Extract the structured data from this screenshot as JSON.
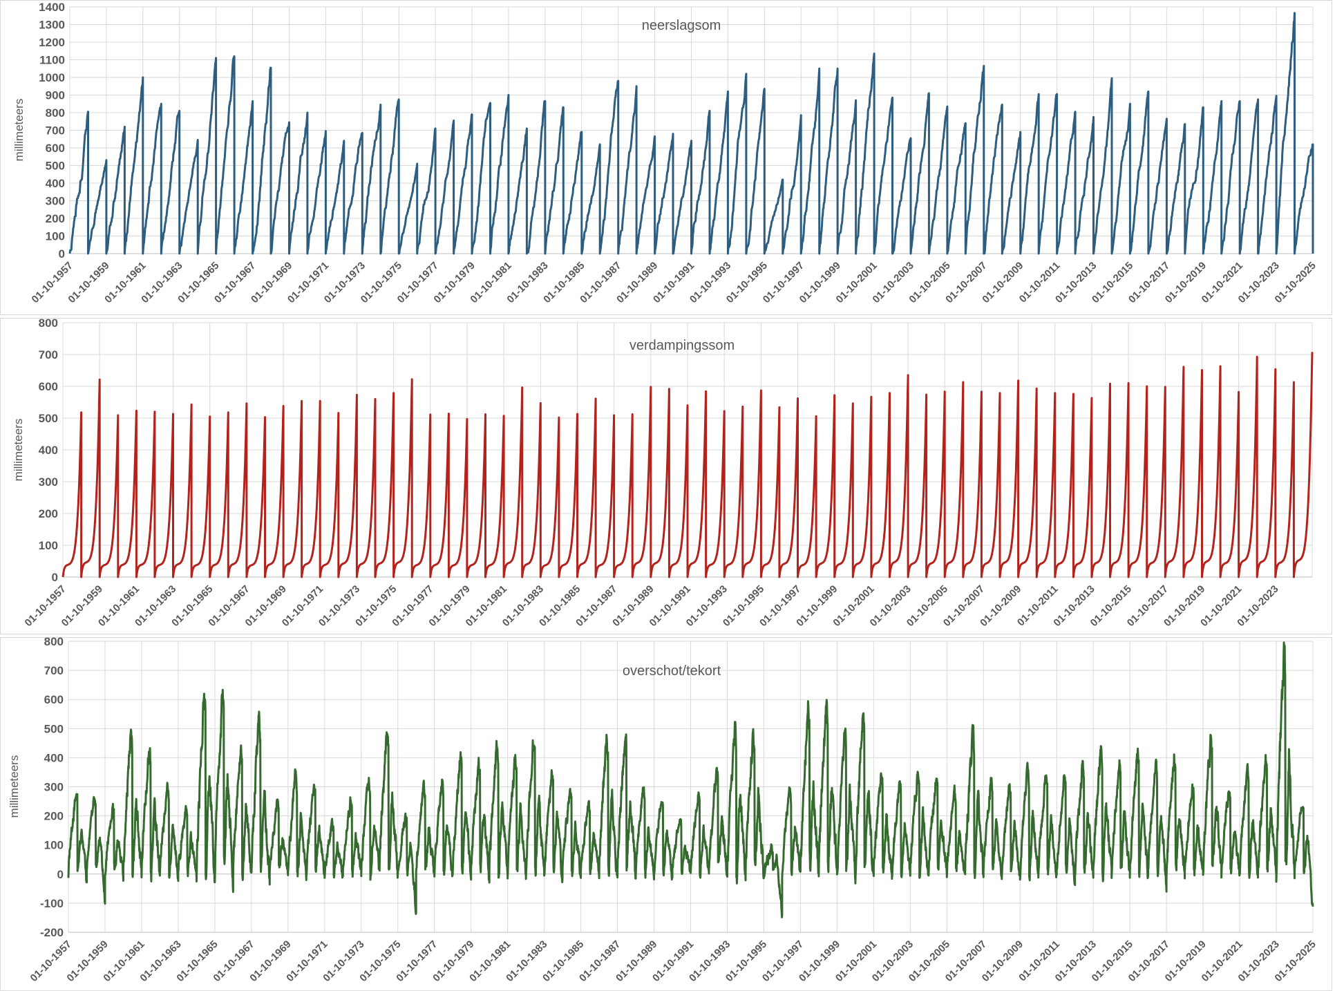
{
  "colors": {
    "neerslag": "#2d5e80",
    "verdamping": "#b3231c",
    "overschot": "#356a2e",
    "grid": "#d9d9d9"
  },
  "chart_data": [
    {
      "type": "line",
      "title": "neerslagsom",
      "ylabel": "millimeteers",
      "ylim": [
        0,
        1400
      ],
      "yticks": [
        "0",
        "100",
        "200",
        "300",
        "400",
        "500",
        "600",
        "700",
        "800",
        "900",
        "1000",
        "1100",
        "1200",
        "1300",
        "1400"
      ],
      "xlim": [
        "01-10-1957",
        "01-10-2025"
      ],
      "xticks": [
        "01-10-1957",
        "01-10-1959",
        "01-10-1961",
        "01-10-1963",
        "01-10-1965",
        "01-10-1967",
        "01-10-1969",
        "01-10-1971",
        "01-10-1973",
        "01-10-1975",
        "01-10-1977",
        "01-10-1979",
        "01-10-1981",
        "01-10-1983",
        "01-10-1985",
        "01-10-1987",
        "01-10-1989",
        "01-10-1991",
        "01-10-1993",
        "01-10-1995",
        "01-10-1997",
        "01-10-1999",
        "01-10-2001",
        "01-10-2003",
        "01-10-2005",
        "01-10-2007",
        "01-10-2009",
        "01-10-2011",
        "01-10-2013",
        "01-10-2015",
        "01-10-2017",
        "01-10-2019",
        "01-10-2021",
        "01-10-2023",
        "01-10-2025"
      ],
      "grid": true,
      "series_description": "cumulative sum per hydrological year (01-10 to 30-09), annual end values",
      "annual_peaks": [
        805,
        530,
        720,
        1000,
        850,
        810,
        645,
        1110,
        1120,
        865,
        1055,
        745,
        800,
        695,
        640,
        685,
        845,
        875,
        510,
        710,
        755,
        790,
        855,
        900,
        710,
        865,
        830,
        690,
        620,
        980,
        950,
        665,
        680,
        640,
        810,
        920,
        1020,
        935,
        420,
        785,
        1050,
        1050,
        870,
        1135,
        885,
        655,
        910,
        835,
        740,
        1065,
        845,
        690,
        905,
        905,
        805,
        775,
        995,
        850,
        920,
        765,
        735,
        830,
        865,
        865,
        875,
        895,
        1365,
        620
      ]
    },
    {
      "type": "line",
      "title": "verdampingssom",
      "ylabel": "millimeteers",
      "ylim": [
        0,
        800
      ],
      "yticks": [
        "0",
        "100",
        "200",
        "300",
        "400",
        "500",
        "600",
        "700",
        "800"
      ],
      "xlim": [
        "01-10-1957",
        "01-10-2025"
      ],
      "xticks": [
        "01-10-1957",
        "01-10-1959",
        "01-10-1961",
        "01-10-1963",
        "01-10-1965",
        "01-10-1967",
        "01-10-1969",
        "01-10-1971",
        "01-10-1973",
        "01-10-1975",
        "01-10-1977",
        "01-10-1979",
        "01-10-1981",
        "01-10-1983",
        "01-10-1985",
        "01-10-1987",
        "01-10-1989",
        "01-10-1991",
        "01-10-1993",
        "01-10-1995",
        "01-10-1997",
        "01-10-1999",
        "01-10-2001",
        "01-10-2003",
        "01-10-2005",
        "01-10-2007",
        "01-10-2009",
        "01-10-2011",
        "01-10-2013",
        "01-10-2015",
        "01-10-2017",
        "01-10-2019",
        "01-10-2021",
        "01-10-2023"
      ],
      "grid": true,
      "annual_peaks": [
        518,
        621,
        509,
        523,
        520,
        513,
        543,
        505,
        518,
        546,
        503,
        538,
        554,
        554,
        516,
        573,
        560,
        579,
        622,
        511,
        514,
        497,
        512,
        507,
        596,
        547,
        502,
        513,
        561,
        509,
        512,
        598,
        592,
        540,
        584,
        522,
        536,
        587,
        534,
        562,
        506,
        572,
        546,
        567,
        579,
        635,
        574,
        583,
        613,
        583,
        579,
        618,
        593,
        579,
        576,
        563,
        608,
        610,
        600,
        598,
        661,
        651,
        663,
        582,
        693,
        654,
        613,
        708
      ]
    },
    {
      "type": "line",
      "title": "overschot/tekort",
      "ylabel": "millimeteers",
      "ylim": [
        -200,
        800
      ],
      "yticks": [
        "-200",
        "-100",
        "0",
        "100",
        "200",
        "300",
        "400",
        "500",
        "600",
        "700",
        "800"
      ],
      "xlim": [
        "01-10-1957",
        "01-10-2025"
      ],
      "xticks": [
        "01-10-1957",
        "01-10-1959",
        "01-10-1961",
        "01-10-1963",
        "01-10-1965",
        "01-10-1967",
        "01-10-1969",
        "01-10-1971",
        "01-10-1973",
        "01-10-1975",
        "01-10-1977",
        "01-10-1979",
        "01-10-1981",
        "01-10-1983",
        "01-10-1985",
        "01-10-1987",
        "01-10-1989",
        "01-10-1991",
        "01-10-1993",
        "01-10-1995",
        "01-10-1997",
        "01-10-1999",
        "01-10-2001",
        "01-10-2003",
        "01-10-2005",
        "01-10-2007",
        "01-10-2009",
        "01-10-2011",
        "01-10-2013",
        "01-10-2015",
        "01-10-2017",
        "01-10-2019",
        "01-10-2021",
        "01-10-2023",
        "01-10-2025"
      ],
      "grid": true,
      "annual_max": [
        290,
        265,
        235,
        500,
        430,
        300,
        220,
        630,
        625,
        440,
        545,
        250,
        350,
        310,
        170,
        260,
        330,
        500,
        200,
        300,
        330,
        410,
        380,
        450,
        400,
        470,
        350,
        300,
        250,
        480,
        490,
        300,
        270,
        200,
        280,
        370,
        500,
        500,
        90,
        300,
        570,
        590,
        500,
        570,
        350,
        310,
        370,
        330,
        280,
        480,
        330,
        300,
        370,
        350,
        330,
        380,
        430,
        380,
        430,
        370,
        400,
        300,
        470,
        290,
        360,
        400,
        770,
        250
      ],
      "annual_min": [
        -15,
        -85,
        -5,
        -15,
        -10,
        -10,
        -5,
        -20,
        -10,
        -5,
        -20,
        -5,
        -10,
        -15,
        -10,
        -5,
        -5,
        -10,
        -130,
        -10,
        -5,
        -20,
        -15,
        -10,
        -5,
        -15,
        -20,
        -5,
        -10,
        -15,
        -10,
        -5,
        -10,
        -5,
        -10,
        -15,
        -5,
        -10,
        -140,
        -5,
        -10,
        -5,
        -10,
        -5,
        -10,
        -5,
        -10,
        -5,
        -15,
        -10,
        -5,
        -15,
        -10,
        -5,
        -25,
        -10,
        -5,
        -10,
        -5,
        -50,
        -5,
        -10,
        -5,
        -10,
        -5,
        -10,
        -5,
        -120
      ]
    }
  ]
}
